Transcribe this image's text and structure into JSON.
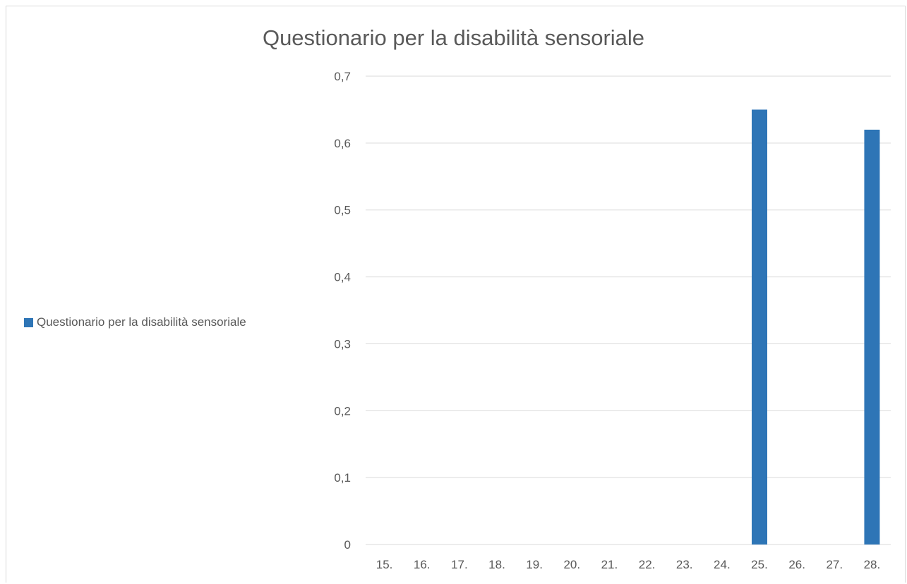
{
  "chart_data": {
    "type": "bar",
    "title": "Questionario per la disabilità sensoriale",
    "categories": [
      "15.",
      "16.",
      "17.",
      "18.",
      "19.",
      "20.",
      "21.",
      "22.",
      "23.",
      "24.",
      "25.",
      "26.",
      "27.",
      "28."
    ],
    "series": [
      {
        "name": "Questionario per la disabilità sensoriale",
        "values": [
          0,
          0,
          0,
          0,
          0,
          0,
          0,
          0,
          0,
          0,
          0.65,
          0,
          0,
          0.62
        ],
        "color": "#2e75b6"
      }
    ],
    "ylim": [
      0,
      0.7
    ],
    "yticks": [
      "0",
      "0,1",
      "0,2",
      "0,3",
      "0,4",
      "0,5",
      "0,6",
      "0,7"
    ],
    "grid": true,
    "legend_position": "left",
    "gridline_color": "#d9d9d9",
    "text_color": "#595959"
  }
}
